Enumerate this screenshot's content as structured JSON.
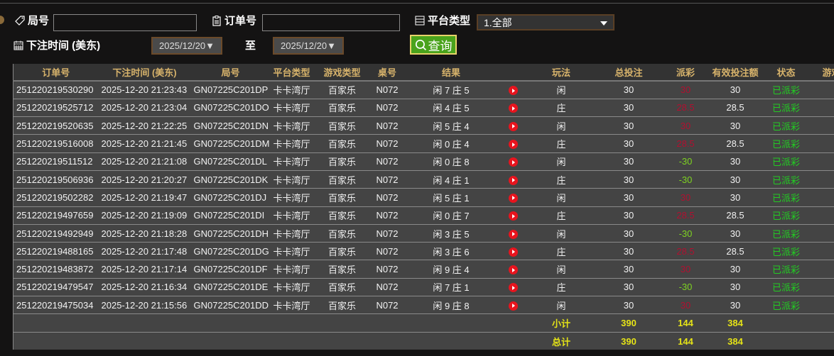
{
  "filters": {
    "round_label": "局号",
    "round_value": "",
    "order_label": "订单号",
    "order_value": "",
    "platform_label": "平台类型",
    "platform_selected": "1.全部",
    "time_label": "下注时间 (美东)",
    "date_from": "2025/12/20▼",
    "to_label": "至",
    "date_to": "2025/12/20▼",
    "query_label": "查询"
  },
  "table": {
    "headers": [
      "订单号",
      "下注时间 (美东)",
      "局号",
      "平台类型",
      "游戏类型",
      "桌号",
      "结果",
      "",
      "玩法",
      "总投注",
      "派彩",
      "有效投注额",
      "状态",
      "游戏"
    ],
    "rows": [
      {
        "order": "251220219530290",
        "time": "2025-12-20 21:23:43",
        "round": "GN07225C201DP",
        "platform": "卡卡湾厅",
        "game": "百家乐",
        "table": "N072",
        "result": "闲 7 庄 5",
        "play": "闲",
        "bet": "30",
        "payout": "30",
        "payout_color": "red",
        "valid": "30",
        "status": "已派彩"
      },
      {
        "order": "251220219525712",
        "time": "2025-12-20 21:23:04",
        "round": "GN07225C201DO",
        "platform": "卡卡湾厅",
        "game": "百家乐",
        "table": "N072",
        "result": "闲 4 庄 5",
        "play": "庄",
        "bet": "30",
        "payout": "28.5",
        "payout_color": "red",
        "valid": "28.5",
        "status": "已派彩"
      },
      {
        "order": "251220219520635",
        "time": "2025-12-20 21:22:25",
        "round": "GN07225C201DN",
        "platform": "卡卡湾厅",
        "game": "百家乐",
        "table": "N072",
        "result": "闲 5 庄 4",
        "play": "闲",
        "bet": "30",
        "payout": "30",
        "payout_color": "red",
        "valid": "30",
        "status": "已派彩"
      },
      {
        "order": "251220219516008",
        "time": "2025-12-20 21:21:45",
        "round": "GN07225C201DM",
        "platform": "卡卡湾厅",
        "game": "百家乐",
        "table": "N072",
        "result": "闲 0 庄 4",
        "play": "庄",
        "bet": "30",
        "payout": "28.5",
        "payout_color": "red",
        "valid": "28.5",
        "status": "已派彩"
      },
      {
        "order": "251220219511512",
        "time": "2025-12-20 21:21:08",
        "round": "GN07225C201DL",
        "platform": "卡卡湾厅",
        "game": "百家乐",
        "table": "N072",
        "result": "闲 0 庄 8",
        "play": "闲",
        "bet": "30",
        "payout": "-30",
        "payout_color": "green",
        "valid": "30",
        "status": "已派彩"
      },
      {
        "order": "251220219506936",
        "time": "2025-12-20 21:20:27",
        "round": "GN07225C201DK",
        "platform": "卡卡湾厅",
        "game": "百家乐",
        "table": "N072",
        "result": "闲 4 庄 1",
        "play": "庄",
        "bet": "30",
        "payout": "-30",
        "payout_color": "green",
        "valid": "30",
        "status": "已派彩"
      },
      {
        "order": "251220219502282",
        "time": "2025-12-20 21:19:47",
        "round": "GN07225C201DJ",
        "platform": "卡卡湾厅",
        "game": "百家乐",
        "table": "N072",
        "result": "闲 5 庄 1",
        "play": "闲",
        "bet": "30",
        "payout": "30",
        "payout_color": "red",
        "valid": "30",
        "status": "已派彩"
      },
      {
        "order": "251220219497659",
        "time": "2025-12-20 21:19:09",
        "round": "GN07225C201DI",
        "platform": "卡卡湾厅",
        "game": "百家乐",
        "table": "N072",
        "result": "闲 0 庄 7",
        "play": "庄",
        "bet": "30",
        "payout": "28.5",
        "payout_color": "red",
        "valid": "28.5",
        "status": "已派彩"
      },
      {
        "order": "251220219492949",
        "time": "2025-12-20 21:18:28",
        "round": "GN07225C201DH",
        "platform": "卡卡湾厅",
        "game": "百家乐",
        "table": "N072",
        "result": "闲 3 庄 5",
        "play": "闲",
        "bet": "30",
        "payout": "-30",
        "payout_color": "green",
        "valid": "30",
        "status": "已派彩"
      },
      {
        "order": "251220219488165",
        "time": "2025-12-20 21:17:48",
        "round": "GN07225C201DG",
        "platform": "卡卡湾厅",
        "game": "百家乐",
        "table": "N072",
        "result": "闲 3 庄 6",
        "play": "庄",
        "bet": "30",
        "payout": "28.5",
        "payout_color": "red",
        "valid": "28.5",
        "status": "已派彩"
      },
      {
        "order": "251220219483872",
        "time": "2025-12-20 21:17:14",
        "round": "GN07225C201DF",
        "platform": "卡卡湾厅",
        "game": "百家乐",
        "table": "N072",
        "result": "闲 9 庄 4",
        "play": "闲",
        "bet": "30",
        "payout": "30",
        "payout_color": "red",
        "valid": "30",
        "status": "已派彩"
      },
      {
        "order": "251220219479547",
        "time": "2025-12-20 21:16:34",
        "round": "GN07225C201DE",
        "platform": "卡卡湾厅",
        "game": "百家乐",
        "table": "N072",
        "result": "闲 7 庄 1",
        "play": "庄",
        "bet": "30",
        "payout": "-30",
        "payout_color": "green",
        "valid": "30",
        "status": "已派彩"
      },
      {
        "order": "251220219475034",
        "time": "2025-12-20 21:15:56",
        "round": "GN07225C201DD",
        "platform": "卡卡湾厅",
        "game": "百家乐",
        "table": "N072",
        "result": "闲 9 庄 8",
        "play": "闲",
        "bet": "30",
        "payout": "30",
        "payout_color": "red",
        "valid": "30",
        "status": "已派彩"
      }
    ],
    "subtotal": {
      "label": "小计",
      "bet": "390",
      "payout": "144",
      "valid": "384"
    },
    "total": {
      "label": "总计",
      "bet": "390",
      "payout": "144",
      "valid": "384"
    }
  },
  "colors": {
    "header_text": "#d7b36b",
    "loss": "#b01030",
    "win": "#7ed321",
    "status": "#22cc22",
    "sum": "#e5e317",
    "query_button": "#4aa31c"
  }
}
